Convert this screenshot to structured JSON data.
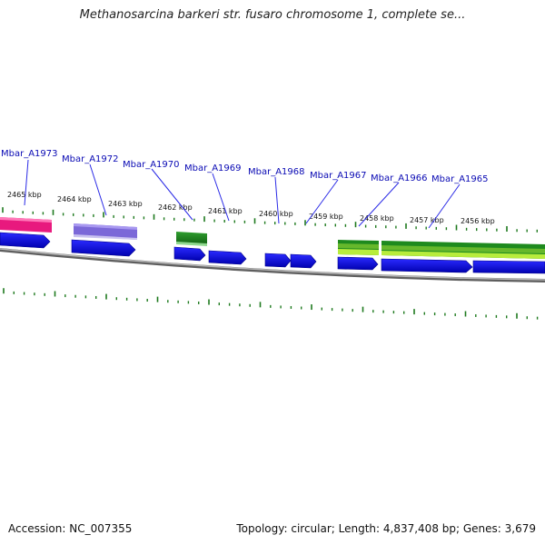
{
  "title": "Methanosarcina barkeri str. fusaro chromosome 1, complete se...",
  "footer": {
    "accession": "Accession: NC_007355",
    "stats": "Topology: circular; Length: 4,837,408 bp; Genes: 3,679"
  },
  "kbp_labels": [
    "2465 kbp",
    "2464 kbp",
    "2463 kbp",
    "2462 kbp",
    "2461 kbp",
    "2460 kbp",
    "2459 kbp",
    "2458 kbp",
    "2457 kbp",
    "2456 kbp"
  ],
  "gene_labels": [
    "Mbar_A1973",
    "Mbar_A1972",
    "Mbar_A1970",
    "Mbar_A1969",
    "Mbar_A1968",
    "Mbar_A1967",
    "Mbar_A1966",
    "Mbar_A1965"
  ],
  "colors": {
    "gene_arrow": "#0000e6",
    "pink_feature": "#e8197e",
    "purple_feature": "#7b68d8",
    "green_feature": "#1e8a1e",
    "lightgreen_feature": "#9ad832",
    "tick": "#1e7a1e",
    "backbone": "#8a8a8a"
  }
}
